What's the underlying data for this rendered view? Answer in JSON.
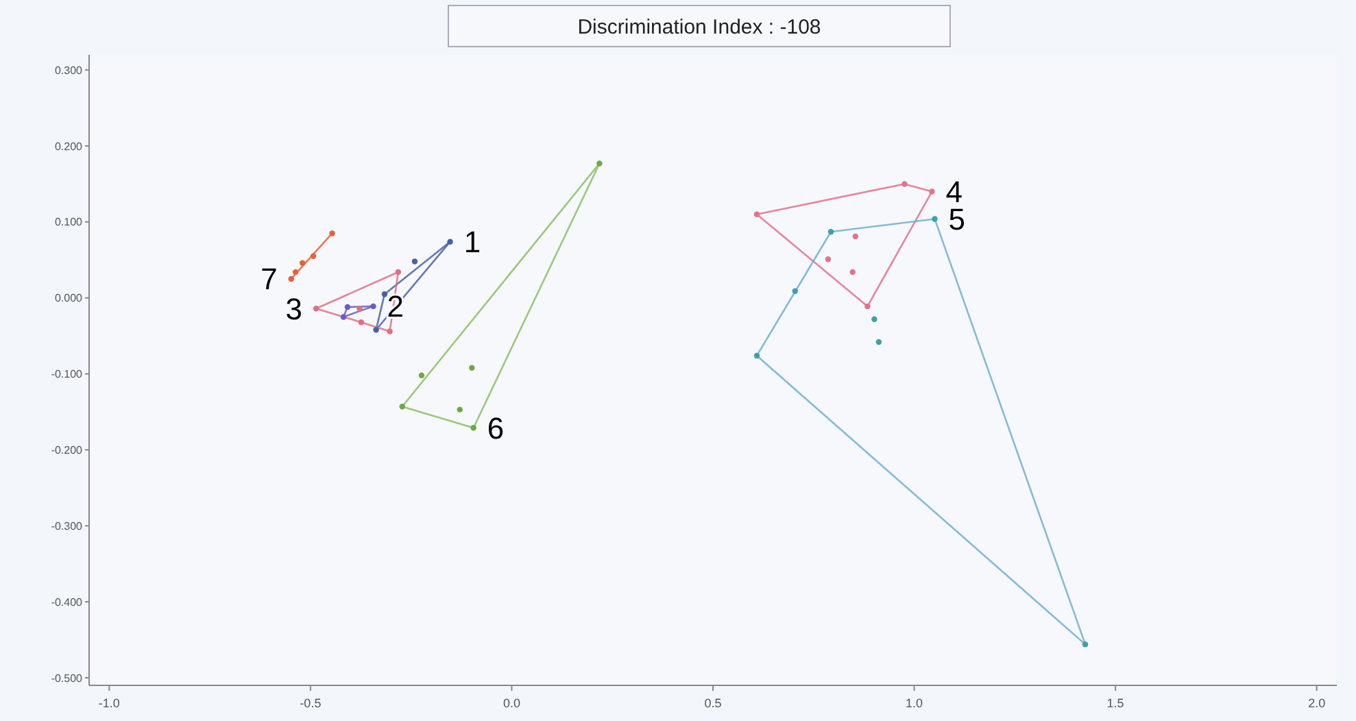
{
  "chart_data": {
    "type": "scatter",
    "title": "Discrimination Index : -108",
    "xlim": [
      -1.05,
      2.05
    ],
    "ylim": [
      -0.51,
      0.32
    ],
    "xticks": [
      {
        "value": -1,
        "label": "-1.0"
      },
      {
        "value": -0.5,
        "label": "-0.5"
      },
      {
        "value": 0,
        "label": "0.0"
      },
      {
        "value": 0.5,
        "label": "0.5"
      },
      {
        "value": 1,
        "label": "1.0"
      },
      {
        "value": 1.5,
        "label": "1.5"
      },
      {
        "value": 2,
        "label": "2.0"
      }
    ],
    "yticks": [
      {
        "value": 0.3,
        "label": "0.300"
      },
      {
        "value": 0.2,
        "label": "0.200"
      },
      {
        "value": 0.1,
        "label": "0.100"
      },
      {
        "value": 0,
        "label": "0.000"
      },
      {
        "value": -0.1,
        "label": "-0.100"
      },
      {
        "value": -0.2,
        "label": "-0.200"
      },
      {
        "value": -0.3,
        "label": "-0.300"
      },
      {
        "value": -0.4,
        "label": "-0.400"
      },
      {
        "value": -0.5,
        "label": "-0.500"
      }
    ],
    "grid": false,
    "legend": false,
    "marker": "circle",
    "series": [
      {
        "name": "1",
        "color": "#4a5fa8",
        "x": [
          -0.153,
          -0.241,
          -0.316,
          -0.337
        ],
        "values": [
          0.074,
          0.048,
          0.005,
          -0.042
        ]
      },
      {
        "type": "line",
        "marker": "none",
        "color": "#4a5fa8",
        "x": [
          -0.337,
          -0.153
        ],
        "values": [
          -0.042,
          0.074
        ]
      },
      {
        "type": "line",
        "marker": "none",
        "color": "#4a5fa8",
        "x": [
          -0.337,
          -0.316
        ],
        "values": [
          -0.042,
          0.005
        ]
      },
      {
        "type": "line",
        "marker": "none",
        "color": "#4a5fa8",
        "x": [
          -0.316,
          -0.153
        ],
        "values": [
          0.005,
          0.074
        ]
      },
      {
        "name": "2",
        "color": "#6a5acd",
        "x": [
          -0.344,
          -0.408,
          -0.418
        ],
        "values": [
          -0.011,
          -0.012,
          -0.025
        ]
      },
      {
        "type": "line",
        "marker": "none",
        "color": "#6a5acd",
        "x": [
          -0.418,
          -0.344
        ],
        "values": [
          -0.025,
          -0.011
        ]
      },
      {
        "type": "line",
        "marker": "none",
        "color": "#6a5acd",
        "x": [
          -0.418,
          -0.408
        ],
        "values": [
          -0.025,
          -0.012
        ]
      },
      {
        "type": "line",
        "marker": "none",
        "color": "#6a5acd",
        "x": [
          -0.408,
          -0.344
        ],
        "values": [
          -0.012,
          -0.011
        ]
      },
      {
        "name": "3",
        "color": "#e07080",
        "x": [
          -0.486,
          -0.282,
          -0.378,
          -0.374,
          -0.303
        ],
        "values": [
          -0.014,
          0.034,
          -0.014,
          -0.032,
          -0.044
        ]
      },
      {
        "type": "line",
        "marker": "none",
        "color": "#e07080",
        "x": [
          -0.486,
          -0.282
        ],
        "values": [
          -0.014,
          0.034
        ]
      },
      {
        "type": "line",
        "marker": "none",
        "color": "#e07080",
        "x": [
          -0.303,
          -0.282
        ],
        "values": [
          -0.044,
          0.034
        ]
      },
      {
        "type": "line",
        "marker": "none",
        "color": "#e07080",
        "x": [
          -0.374,
          -0.303
        ],
        "values": [
          -0.032,
          -0.044
        ]
      },
      {
        "type": "line",
        "marker": "none",
        "color": "#e07080",
        "x": [
          -0.486,
          -0.374
        ],
        "values": [
          -0.014,
          -0.032
        ]
      },
      {
        "name": "4",
        "color": "#e8708a",
        "x": [
          1.044,
          0.976,
          0.609,
          0.854,
          0.786,
          0.847,
          0.884
        ],
        "values": [
          0.14,
          0.15,
          0.11,
          0.081,
          0.051,
          0.034,
          -0.011
        ]
      },
      {
        "type": "line",
        "marker": "none",
        "color": "#e8708a",
        "x": [
          0.609,
          0.976
        ],
        "values": [
          0.11,
          0.15
        ]
      },
      {
        "type": "line",
        "marker": "none",
        "color": "#e8708a",
        "x": [
          0.976,
          1.044
        ],
        "values": [
          0.15,
          0.14
        ]
      },
      {
        "type": "line",
        "marker": "none",
        "color": "#e8708a",
        "x": [
          0.884,
          1.044
        ],
        "values": [
          -0.011,
          0.14
        ]
      },
      {
        "type": "line",
        "marker": "none",
        "color": "#e8708a",
        "x": [
          0.609,
          0.884
        ],
        "values": [
          0.11,
          -0.011
        ]
      },
      {
        "name": "5",
        "color": "#3f9fb0",
        "x": [
          1.051,
          0.793,
          0.704,
          0.609,
          0.901,
          0.912,
          1.425
        ],
        "values": [
          0.104,
          0.087,
          0.009,
          -0.076,
          -0.028,
          -0.058,
          -0.456
        ]
      },
      {
        "type": "line",
        "marker": "none",
        "color": "#6fb0cf",
        "x": [
          0.609,
          0.793
        ],
        "values": [
          -0.076,
          0.087
        ]
      },
      {
        "type": "line",
        "marker": "none",
        "color": "#6fb0cf",
        "x": [
          0.793,
          1.051
        ],
        "values": [
          0.087,
          0.104
        ]
      },
      {
        "type": "line",
        "marker": "none",
        "color": "#6fb0cf",
        "x": [
          1.051,
          1.425
        ],
        "values": [
          0.104,
          -0.456
        ]
      },
      {
        "type": "line",
        "marker": "none",
        "color": "#6fb0cf",
        "x": [
          0.609,
          1.425
        ],
        "values": [
          -0.076,
          -0.456
        ]
      },
      {
        "name": "6",
        "color": "#6fa845",
        "x": [
          -0.095,
          0.218,
          -0.224,
          -0.272,
          -0.099,
          -0.129
        ],
        "values": [
          -0.171,
          0.177,
          -0.102,
          -0.143,
          -0.092,
          -0.147
        ]
      },
      {
        "type": "line",
        "marker": "none",
        "color": "#8cc063",
        "x": [
          -0.272,
          0.218
        ],
        "values": [
          -0.143,
          0.177
        ]
      },
      {
        "type": "line",
        "marker": "none",
        "color": "#8cc063",
        "x": [
          -0.095,
          0.218
        ],
        "values": [
          -0.171,
          0.177
        ]
      },
      {
        "type": "line",
        "marker": "none",
        "color": "#8cc063",
        "x": [
          -0.272,
          -0.095
        ],
        "values": [
          -0.143,
          -0.171
        ]
      },
      {
        "name": "7",
        "color": "#e8603c",
        "x": [
          -0.548,
          -0.446,
          -0.493,
          -0.52,
          -0.537
        ],
        "values": [
          0.025,
          0.085,
          0.055,
          0.046,
          0.034
        ]
      },
      {
        "type": "line",
        "marker": "none",
        "color": "#e8603c",
        "x": [
          -0.548,
          -0.446
        ],
        "values": [
          0.025,
          0.085
        ]
      }
    ]
  }
}
